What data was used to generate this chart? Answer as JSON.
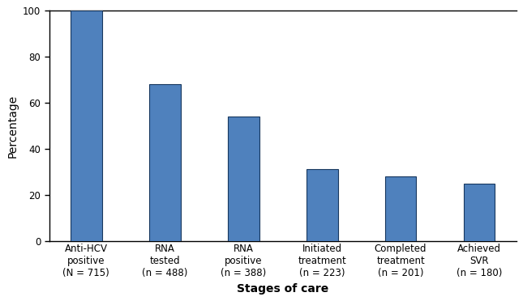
{
  "categories": [
    "Anti-HCV\npositive\n(N = 715)",
    "RNA\ntested\n(n = 488)",
    "RNA\npositive\n(n = 388)",
    "Initiated\ntreatment\n(n = 223)",
    "Completed\ntreatment\n(n = 201)",
    "Achieved\nSVR\n(n = 180)"
  ],
  "values": [
    100,
    68.3,
    54.3,
    31.2,
    28.1,
    25.2
  ],
  "bar_color": "#4f81bd",
  "bar_edgecolor": "#17375e",
  "xlabel": "Stages of care",
  "ylabel": "Percentage",
  "ylim": [
    0,
    100
  ],
  "yticks": [
    0,
    20,
    40,
    60,
    80,
    100
  ],
  "bar_width": 0.4,
  "axis_label_fontsize": 10,
  "tick_label_fontsize": 8.5,
  "background_color": "#ffffff"
}
